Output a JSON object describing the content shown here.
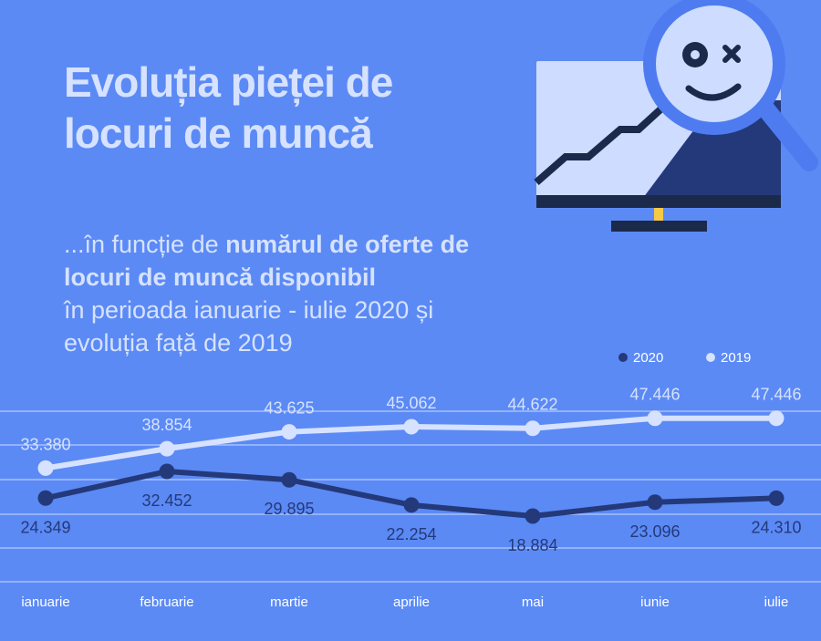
{
  "title": {
    "line1": "Evoluția pieței de",
    "line2": "locuri de muncă"
  },
  "subtitle": {
    "prefix": "...în funcție de ",
    "bold1": "numărul de oferte de",
    "bold2": "locuri de muncă disponibil",
    "line3": "în perioada ianuarie - iulie 2020 și",
    "line4": "evoluția față de 2019"
  },
  "colors": {
    "background": "#5b8af5",
    "series_2020": "#24397a",
    "series_2019": "#d6e2ff",
    "gridline": "#a8c0fb"
  },
  "chart_data": {
    "type": "line",
    "categories": [
      "ianuarie",
      "februarie",
      "martie",
      "aprilie",
      "mai",
      "iunie",
      "iulie"
    ],
    "series": [
      {
        "name": "2020",
        "values": [
          24349,
          32452,
          29895,
          22254,
          18884,
          23096,
          24310
        ],
        "labels": [
          "24.349",
          "32.452",
          "29.895",
          "22.254",
          "18.884",
          "23.096",
          "24.310"
        ]
      },
      {
        "name": "2019",
        "values": [
          33380,
          38854,
          43625,
          45062,
          44622,
          47446,
          47446
        ],
        "labels": [
          "33.380",
          "38.854",
          "43.625",
          "45.062",
          "44.622",
          "47.446",
          "47.446"
        ]
      }
    ],
    "legend_position": "top-right",
    "grid": true
  }
}
